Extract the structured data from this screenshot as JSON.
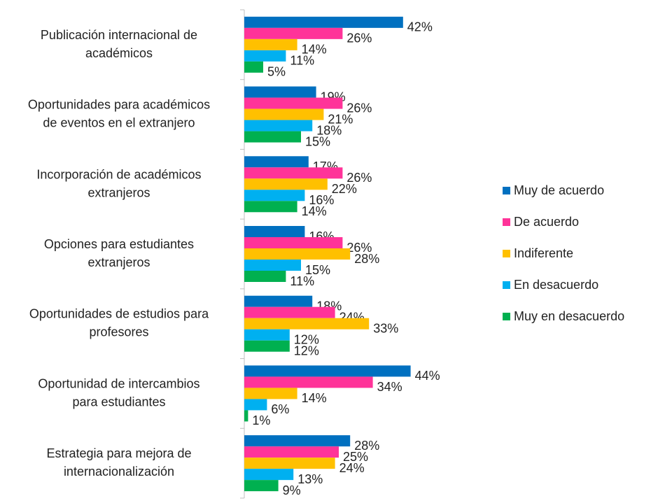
{
  "chart_data": {
    "type": "bar",
    "orientation": "horizontal",
    "categories": [
      "Publicación internacional de académicos",
      "Oportunidades para académicos de eventos en el extranjero",
      "Incorporación de académicos extranjeros",
      "Opciones para estudiantes extranjeros",
      "Oportunidades de estudios para profesores",
      "Oportunidad de intercambios para estudiantes",
      "Estrategia para mejora de internacionalización"
    ],
    "series": [
      {
        "name": "Muy de acuerdo",
        "color": "#0070c0",
        "values": [
          42,
          19,
          17,
          16,
          18,
          44,
          28
        ],
        "value_labels": [
          "42%",
          "19%",
          "17%",
          "16%",
          "18%",
          "44%",
          "28%"
        ]
      },
      {
        "name": "De acuerdo",
        "color": "#ff3399",
        "values": [
          26,
          26,
          26,
          26,
          24,
          34,
          25
        ],
        "value_labels": [
          "26%",
          "26%",
          "26%",
          "26%",
          "24%",
          "34%",
          "25%"
        ]
      },
      {
        "name": "Indiferente",
        "color": "#ffc000",
        "values": [
          14,
          21,
          22,
          28,
          33,
          14,
          24
        ],
        "value_labels": [
          "14%",
          "21%",
          "22%",
          "28%",
          "33%",
          "14%",
          "24%"
        ]
      },
      {
        "name": "En desacuerdo",
        "color": "#00b0f0",
        "values": [
          11,
          18,
          16,
          15,
          12,
          6,
          13
        ],
        "value_labels": [
          "11%",
          "18%",
          "16%",
          "15%",
          "12%",
          "6%",
          "13%"
        ]
      },
      {
        "name": "Muy en desacuerdo",
        "color": "#00b050",
        "values": [
          5,
          15,
          14,
          11,
          12,
          1,
          9
        ],
        "value_labels": [
          "5%",
          "15%",
          "14%",
          "11%",
          "12%",
          "1%",
          "9%"
        ]
      }
    ],
    "legend": "right"
  }
}
